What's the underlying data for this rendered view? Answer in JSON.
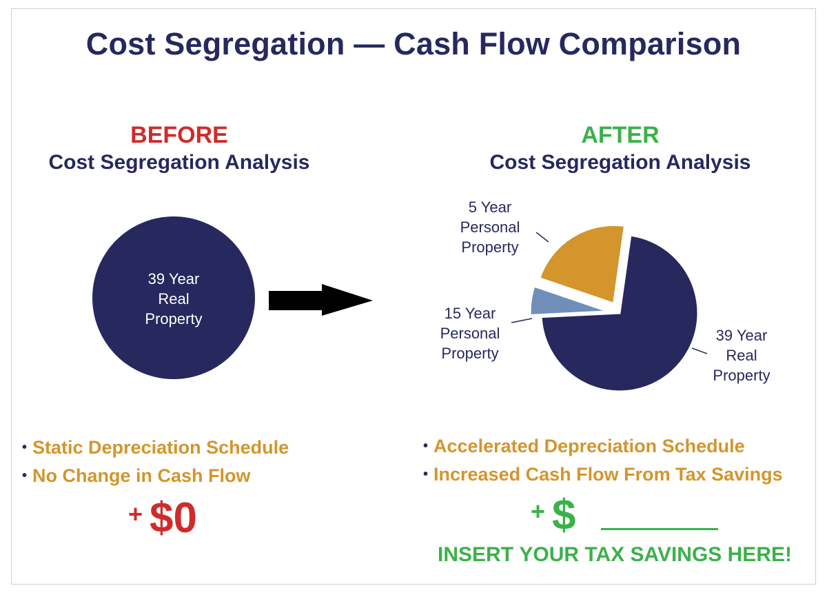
{
  "title": "Cost Segregation — Cash Flow Comparison",
  "colors": {
    "navy": "#27285e",
    "gold": "#d3952c",
    "steel_blue": "#6f8fba",
    "red": "#cf2b2b",
    "green": "#3bb14a"
  },
  "before": {
    "tag": "BEFORE",
    "subtitle": "Cost Segregation Analysis",
    "bullets": [
      "Static Depreciation Schedule",
      "No Change in Cash Flow"
    ],
    "amount_prefix": "+",
    "amount": "$0"
  },
  "after": {
    "tag": "AFTER",
    "subtitle": "Cost Segregation Analysis",
    "bullets": [
      "Accelerated Depreciation Schedule",
      "Increased Cash Flow From Tax Savings"
    ],
    "amount_prefix": "+",
    "amount": "$",
    "cta_part1": "INSERT ",
    "cta_emphasis": "YOUR",
    "cta_part2": " TAX SAVINGS HERE!"
  },
  "chart_data": [
    {
      "type": "pie",
      "title": "BEFORE Cost Segregation Analysis",
      "slices": [
        {
          "label": [
            "39 Year",
            "Real",
            "Property"
          ],
          "value": 100,
          "color": "#27285e"
        }
      ]
    },
    {
      "type": "pie",
      "title": "AFTER Cost Segregation Analysis",
      "slices": [
        {
          "label": [
            "39 Year",
            "Real",
            "Property"
          ],
          "value": 72,
          "color": "#27285e",
          "exploded": false
        },
        {
          "label": [
            "15 Year",
            "Personal",
            "Property"
          ],
          "value": 6,
          "color": "#6f8fba",
          "exploded": true
        },
        {
          "label": [
            "5 Year",
            "Personal",
            "Property"
          ],
          "value": 22,
          "color": "#d3952c",
          "exploded": true
        }
      ]
    }
  ]
}
